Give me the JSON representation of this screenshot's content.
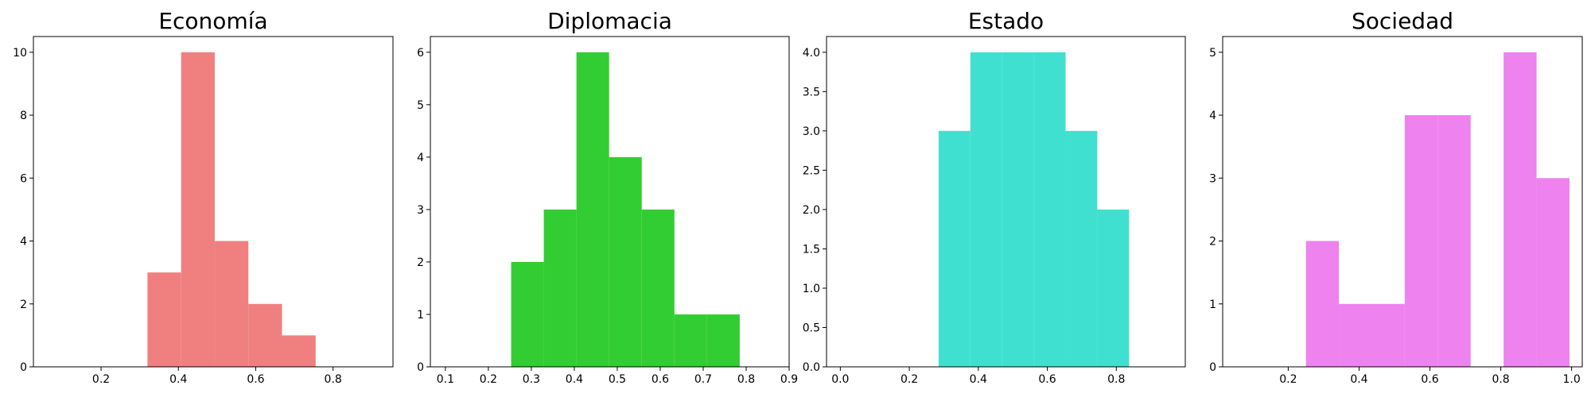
{
  "chart_data": [
    {
      "type": "histogram",
      "title": "Economía",
      "color": "#F08080",
      "xlim": [
        0.025,
        0.955
      ],
      "ylim": [
        0,
        10.5
      ],
      "xticks": [
        0.2,
        0.4,
        0.6,
        0.8
      ],
      "xtick_labels": [
        "0.2",
        "0.4",
        "0.6",
        "0.8"
      ],
      "yticks": [
        0,
        2,
        4,
        6,
        8,
        10
      ],
      "ytick_labels": [
        "0",
        "2",
        "4",
        "6",
        "8",
        "10"
      ],
      "bins": [
        {
          "x0": 0.32,
          "x1": 0.407,
          "count": 3
        },
        {
          "x0": 0.407,
          "x1": 0.494,
          "count": 10
        },
        {
          "x0": 0.494,
          "x1": 0.581,
          "count": 4
        },
        {
          "x0": 0.581,
          "x1": 0.668,
          "count": 2
        },
        {
          "x0": 0.668,
          "x1": 0.755,
          "count": 1
        }
      ]
    },
    {
      "type": "histogram",
      "title": "Diplomacia",
      "color": "#32CD32",
      "xlim": [
        0.065,
        0.9
      ],
      "ylim": [
        0,
        6.3
      ],
      "xticks": [
        0.1,
        0.2,
        0.3,
        0.4,
        0.5,
        0.6,
        0.7,
        0.8,
        0.9
      ],
      "xtick_labels": [
        "0.1",
        "0.2",
        "0.3",
        "0.4",
        "0.5",
        "0.6",
        "0.7",
        "0.8",
        "0.9"
      ],
      "yticks": [
        0,
        1,
        2,
        3,
        4,
        5,
        6
      ],
      "ytick_labels": [
        "0",
        "1",
        "2",
        "3",
        "4",
        "5",
        "6"
      ],
      "bins": [
        {
          "x0": 0.253,
          "x1": 0.329,
          "count": 2
        },
        {
          "x0": 0.329,
          "x1": 0.405,
          "count": 3
        },
        {
          "x0": 0.405,
          "x1": 0.481,
          "count": 6
        },
        {
          "x0": 0.481,
          "x1": 0.557,
          "count": 4
        },
        {
          "x0": 0.557,
          "x1": 0.633,
          "count": 3
        },
        {
          "x0": 0.633,
          "x1": 0.709,
          "count": 1
        },
        {
          "x0": 0.709,
          "x1": 0.785,
          "count": 1
        }
      ]
    },
    {
      "type": "histogram",
      "title": "Estado",
      "color": "#40E0D0",
      "xlim": [
        -0.04,
        1.0
      ],
      "ylim": [
        0,
        4.2
      ],
      "xticks": [
        0.0,
        0.2,
        0.4,
        0.6,
        0.8
      ],
      "xtick_labels": [
        "0.0",
        "0.2",
        "0.4",
        "0.6",
        "0.8"
      ],
      "yticks": [
        0,
        0.5,
        1,
        1.5,
        2,
        2.5,
        3,
        3.5,
        4
      ],
      "ytick_labels": [
        "0.0",
        "0.5",
        "1.0",
        "1.5",
        "2.0",
        "2.5",
        "3.0",
        "3.5",
        "4.0"
      ],
      "bins": [
        {
          "x0": 0.285,
          "x1": 0.377,
          "count": 3
        },
        {
          "x0": 0.377,
          "x1": 0.469,
          "count": 4
        },
        {
          "x0": 0.469,
          "x1": 0.561,
          "count": 4
        },
        {
          "x0": 0.561,
          "x1": 0.653,
          "count": 4
        },
        {
          "x0": 0.653,
          "x1": 0.745,
          "count": 3
        },
        {
          "x0": 0.745,
          "x1": 0.837,
          "count": 2
        }
      ]
    },
    {
      "type": "histogram",
      "title": "Sociedad",
      "color": "#EE82EE",
      "xlim": [
        0.015,
        1.03
      ],
      "ylim": [
        0,
        5.25
      ],
      "xticks": [
        0.2,
        0.4,
        0.6,
        0.8,
        1.0
      ],
      "xtick_labels": [
        "0.2",
        "0.4",
        "0.6",
        "0.8",
        "1.0"
      ],
      "yticks": [
        0,
        1,
        2,
        3,
        4,
        5
      ],
      "ytick_labels": [
        "0",
        "1",
        "2",
        "3",
        "4",
        "5"
      ],
      "bins": [
        {
          "x0": 0.25,
          "x1": 0.343,
          "count": 2
        },
        {
          "x0": 0.343,
          "x1": 0.436,
          "count": 1
        },
        {
          "x0": 0.436,
          "x1": 0.529,
          "count": 1
        },
        {
          "x0": 0.529,
          "x1": 0.622,
          "count": 4
        },
        {
          "x0": 0.622,
          "x1": 0.715,
          "count": 4
        },
        {
          "x0": 0.715,
          "x1": 0.808,
          "count": 0
        },
        {
          "x0": 0.808,
          "x1": 0.901,
          "count": 5
        },
        {
          "x0": 0.901,
          "x1": 0.994,
          "count": 3
        }
      ]
    }
  ]
}
